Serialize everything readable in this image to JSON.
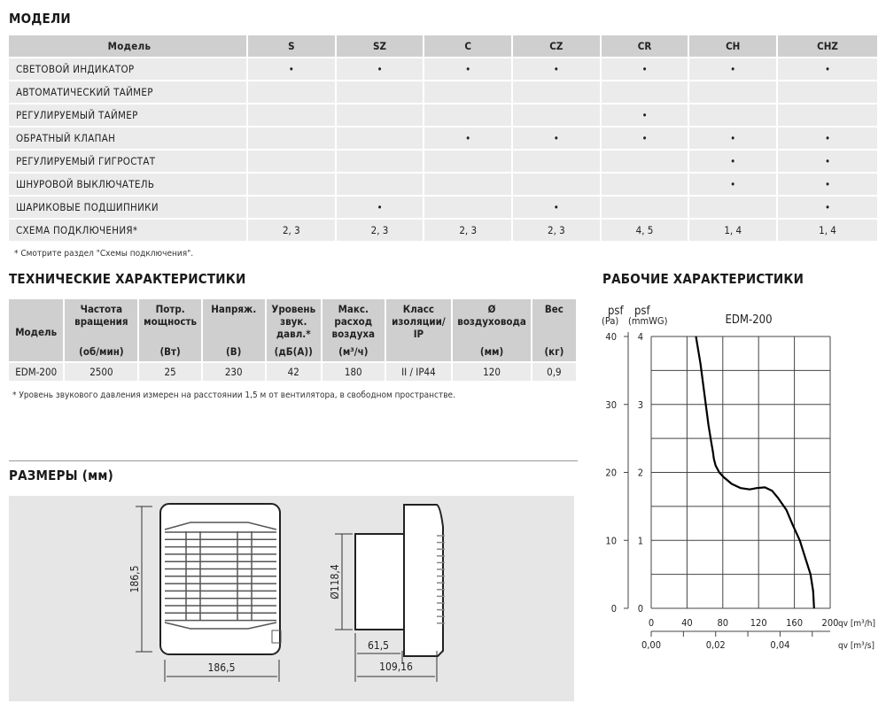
{
  "models_section": {
    "title": "МОДЕЛИ",
    "header": [
      "Модель",
      "S",
      "SZ",
      "C",
      "CZ",
      "CR",
      "CH",
      "CHZ"
    ],
    "rows": [
      {
        "label": "СВЕТОВОЙ ИНДИКАТОР",
        "cells": [
          "•",
          "•",
          "•",
          "•",
          "•",
          "•",
          "•"
        ]
      },
      {
        "label": "АВТОМАТИЧЕСКИЙ ТАЙМЕР",
        "cells": [
          "",
          "",
          "",
          "",
          "",
          "",
          ""
        ]
      },
      {
        "label": "РЕГУЛИРУЕМЫЙ ТАЙМЕР",
        "cells": [
          "",
          "",
          "",
          "",
          "•",
          "",
          ""
        ]
      },
      {
        "label": "ОБРАТНЫЙ КЛАПАН",
        "cells": [
          "",
          "",
          "•",
          "•",
          "•",
          "•",
          "•"
        ]
      },
      {
        "label": "РЕГУЛИРУЕМЫЙ ГИГРОСТАТ",
        "cells": [
          "",
          "",
          "",
          "",
          "",
          "•",
          "•"
        ]
      },
      {
        "label": "ШНУРОВОЙ ВЫКЛЮЧАТЕЛЬ",
        "cells": [
          "",
          "",
          "",
          "",
          "",
          "•",
          "•"
        ]
      },
      {
        "label": "ШАРИКОВЫЕ ПОДШИПНИКИ",
        "cells": [
          "",
          "•",
          "",
          "•",
          "",
          "",
          "•"
        ]
      },
      {
        "label": "СХЕМА ПОДКЛЮЧЕНИЯ*",
        "cells": [
          "2, 3",
          "2, 3",
          "2, 3",
          "2, 3",
          "4, 5",
          "1, 4",
          "1, 4"
        ]
      }
    ],
    "footnote": "* Смотрите раздел \"Схемы подключения\"."
  },
  "tech_section": {
    "title": "ТЕХНИЧЕСКИЕ ХАРАКТЕРИСТИКИ",
    "header": [
      {
        "name": "Модель",
        "unit": ""
      },
      {
        "name": "Частота вращения",
        "unit": "(об/мин)"
      },
      {
        "name": "Потр. мощность",
        "unit": "(Вт)"
      },
      {
        "name": "Напряж.",
        "unit": "(В)"
      },
      {
        "name": "Уровень звук. давл.*",
        "unit": "(дБ(А))"
      },
      {
        "name": "Макс. расход воздуха",
        "unit": "(м³/ч)"
      },
      {
        "name": "Класс изоляции/ IP",
        "unit": ""
      },
      {
        "name": "Ø воздуховода",
        "unit": "(мм)"
      },
      {
        "name": "Вес",
        "unit": "(кг)"
      }
    ],
    "row": [
      "EDM-200",
      "2500",
      "25",
      "230",
      "42",
      "180",
      "II / IP44",
      "120",
      "0,9"
    ],
    "footnote": "* Уровень звукового давления измерен на расстоянии 1,5 м от вентилятора, в свободном пространстве."
  },
  "dimensions_section": {
    "title": "РАЗМЕРЫ (мм)",
    "labels": {
      "height": "186,5",
      "width": "186,5",
      "diameter": "Ø118,4",
      "depth_duct": "61,5",
      "depth_total": "109,16"
    }
  },
  "performance_section": {
    "title": "РАБОЧИЕ ХАРАКТЕРИСТИКИ",
    "chart_data": {
      "type": "line",
      "title": "EDM-200",
      "y_axes": [
        {
          "label": "psf",
          "unit": "(Pa)",
          "ticks": [
            "0",
            "10",
            "20",
            "30",
            "40"
          ],
          "range": [
            0,
            40
          ]
        },
        {
          "label": "psf",
          "unit": "(mmWG)",
          "ticks": [
            "0",
            "1",
            "2",
            "3",
            "4"
          ],
          "range": [
            0,
            4
          ]
        }
      ],
      "x_axes": [
        {
          "label": "qv [m³/h]",
          "ticks": [
            "0",
            "40",
            "80",
            "120",
            "160",
            "200"
          ],
          "range": [
            0,
            200
          ]
        },
        {
          "label": "qv [m³/s]",
          "ticks": [
            "0,00",
            "0,02",
            "0,04"
          ],
          "range": [
            0,
            0.055
          ]
        }
      ],
      "grid": true,
      "series": [
        {
          "x": [
            50,
            55,
            60,
            64,
            67,
            69,
            70,
            72,
            76,
            81,
            90,
            100,
            110,
            118,
            127,
            135,
            142,
            151,
            158,
            166,
            172,
            178,
            181,
            182
          ],
          "y": [
            40,
            36,
            31,
            27,
            24.5,
            23,
            22,
            21,
            20,
            19.3,
            18.3,
            17.7,
            17.5,
            17.7,
            17.8,
            17.3,
            16.2,
            14.5,
            12.3,
            10,
            7.5,
            5,
            2.5,
            0
          ]
        }
      ]
    }
  }
}
